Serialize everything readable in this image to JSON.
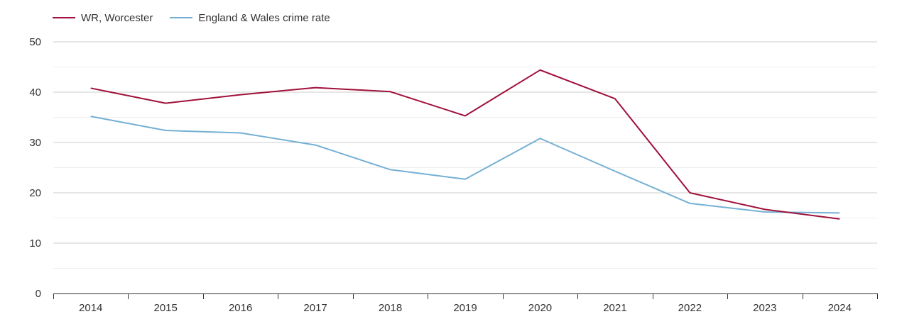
{
  "chart_data": {
    "type": "line",
    "title": "",
    "xlabel": "",
    "ylabel": "",
    "categories": [
      "2014",
      "2015",
      "2016",
      "2017",
      "2018",
      "2019",
      "2020",
      "2021",
      "2022",
      "2023",
      "2024"
    ],
    "ylim": [
      0,
      50
    ],
    "yticks": [
      0,
      10,
      20,
      30,
      40,
      50
    ],
    "grid": true,
    "legend_position": "top-left",
    "series": [
      {
        "name": "WR, Worcester",
        "color": "#a0103a",
        "values": [
          40.8,
          37.8,
          39.5,
          40.9,
          40.1,
          35.3,
          44.4,
          38.7,
          20.0,
          16.7,
          14.8
        ]
      },
      {
        "name": "England & Wales crime rate",
        "color": "#75b0d4",
        "values": [
          35.2,
          32.4,
          31.9,
          29.5,
          24.6,
          22.7,
          30.8,
          24.3,
          17.9,
          16.2,
          16.0
        ]
      }
    ]
  }
}
